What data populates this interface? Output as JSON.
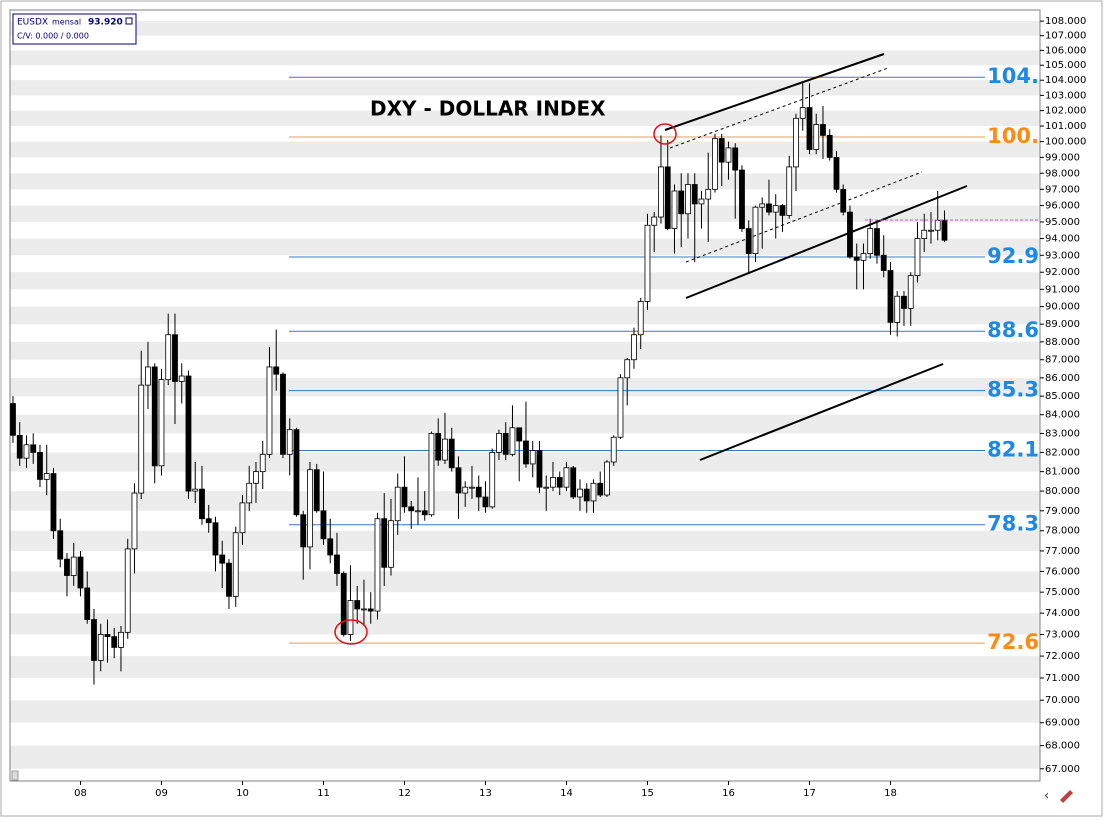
{
  "chart_data": {
    "type": "candlestick",
    "title": "DXY - DOLLAR INDEX",
    "header": {
      "symbol": "EUSDX",
      "period": "mensal",
      "price": "93.920",
      "cv": "C/V: 0.000 / 0.000"
    },
    "log_scale": true,
    "stripes": true,
    "colors": {
      "up_fill": "#ffffff",
      "down_fill": "#000000",
      "outline": "#000000",
      "stripe": "#ececec"
    },
    "categories": [
      null,
      null,
      null,
      null,
      null,
      null,
      null,
      null,
      null,
      null,
      "08",
      null,
      null,
      null,
      null,
      null,
      null,
      null,
      null,
      null,
      null,
      null,
      "09",
      null,
      null,
      null,
      null,
      null,
      null,
      null,
      null,
      null,
      null,
      null,
      "10",
      null,
      null,
      null,
      null,
      null,
      null,
      null,
      null,
      null,
      null,
      null,
      "11",
      null,
      null,
      null,
      null,
      null,
      null,
      null,
      null,
      null,
      null,
      null,
      "12",
      null,
      null,
      null,
      null,
      null,
      null,
      null,
      null,
      null,
      null,
      null,
      "13",
      null,
      null,
      null,
      null,
      null,
      null,
      null,
      null,
      null,
      null,
      null,
      "14",
      null,
      null,
      null,
      null,
      null,
      null,
      null,
      null,
      null,
      null,
      null,
      "15",
      null,
      null,
      null,
      null,
      null,
      null,
      null,
      null,
      null,
      null,
      null,
      "16",
      null,
      null,
      null,
      null,
      null,
      null,
      null,
      null,
      null,
      null,
      null,
      "17",
      null,
      null,
      null,
      null,
      null,
      null,
      null,
      null,
      null,
      null,
      null,
      "18",
      null,
      null,
      null,
      null,
      null,
      null,
      null,
      null
    ],
    "open": [
      84.6,
      82.9,
      81.7,
      82.4,
      82.0,
      80.6,
      80.9,
      78.0,
      76.6,
      75.8,
      76.7,
      75.2,
      73.7,
      71.8,
      73.0,
      72.9,
      72.4,
      73.1,
      77.1,
      79.9,
      85.6,
      86.6,
      81.3,
      85.9,
      88.4,
      85.8,
      86.1,
      80.0,
      80.1,
      78.6,
      78.4,
      76.8,
      76.4,
      74.8,
      77.9,
      79.4,
      80.4,
      81.0,
      81.9,
      86.6,
      86.2,
      81.9,
      83.2,
      78.8,
      77.2,
      81.1,
      79.0,
      77.6,
      76.8,
      75.9,
      73.0,
      74.6,
      74.2,
      74.2,
      74.1,
      78.6,
      76.2,
      78.5,
      80.2,
      79.2,
      79.0,
      79.0,
      78.8,
      83.0,
      81.6,
      82.7,
      81.2,
      79.9,
      80.2,
      80.2,
      79.7,
      79.2,
      82.0,
      83.0,
      81.9,
      83.3,
      82.6,
      81.4,
      82.1,
      80.2,
      80.2,
      80.7,
      80.2,
      81.2,
      79.7,
      80.1,
      79.5,
      80.4,
      79.8,
      81.5,
      82.8,
      86.0,
      87.0,
      88.4,
      90.3,
      94.8,
      95.3,
      98.4,
      94.6,
      96.9,
      95.5,
      97.3,
      96.1,
      96.4,
      97.0,
      100.2,
      98.7,
      99.6,
      98.2,
      94.6,
      93.1,
      95.9,
      96.1,
      95.6,
      96.0,
      95.4,
      98.4,
      101.5,
      102.2,
      99.5,
      101.1,
      100.4,
      99.0,
      97.0,
      95.6,
      92.9,
      92.7,
      93.1,
      94.6,
      93.0,
      92.1,
      89.1,
      90.6,
      89.9,
      91.8,
      94.0,
      94.5,
      94.5,
      95.1
    ],
    "high": [
      85.0,
      83.6,
      82.9,
      83.0,
      82.4,
      82.4,
      81.2,
      78.6,
      76.9,
      77.4,
      77.0,
      76.0,
      74.2,
      73.5,
      73.7,
      73.3,
      73.4,
      77.6,
      80.4,
      87.5,
      88.0,
      86.8,
      86.5,
      89.6,
      89.6,
      86.8,
      86.4,
      81.5,
      81.3,
      79.3,
      78.7,
      77.5,
      76.6,
      78.2,
      79.8,
      81.3,
      81.5,
      82.6,
      87.7,
      88.7,
      86.3,
      83.8,
      83.3,
      79.0,
      81.5,
      81.4,
      81.0,
      78.6,
      77.9,
      76.0,
      76.3,
      75.3,
      75.6,
      75.0,
      78.9,
      79.9,
      79.6,
      80.9,
      81.8,
      79.5,
      80.7,
      80.0,
      83.1,
      83.8,
      84.1,
      83.3,
      81.8,
      80.5,
      81.3,
      80.8,
      80.5,
      82.2,
      83.2,
      83.6,
      84.5,
      83.3,
      84.7,
      82.6,
      82.6,
      80.8,
      81.5,
      81.0,
      81.5,
      81.3,
      80.6,
      80.4,
      80.6,
      81.0,
      81.6,
      82.9,
      86.2,
      87.1,
      88.8,
      90.5,
      95.5,
      95.6,
      100.4,
      100.1,
      97.3,
      98.0,
      98.0,
      98.0,
      96.9,
      99.3,
      100.5,
      100.5,
      100.0,
      99.9,
      98.5,
      95.1,
      96.0,
      96.5,
      97.6,
      96.7,
      96.1,
      99.1,
      101.8,
      103.8,
      103.8,
      101.8,
      102.3,
      100.8,
      99.4,
      97.3,
      96.0,
      93.7,
      93.7,
      95.2,
      95.1,
      94.2,
      92.6,
      90.9,
      90.9,
      92.0,
      95.0,
      95.5,
      95.6,
      96.9,
      95.7
    ],
    "low": [
      82.5,
      81.3,
      81.2,
      81.4,
      80.2,
      79.8,
      77.6,
      76.2,
      74.8,
      75.3,
      74.8,
      73.5,
      70.7,
      71.3,
      71.7,
      71.9,
      71.3,
      72.8,
      75.9,
      79.6,
      84.3,
      80.4,
      80.8,
      85.6,
      83.5,
      84.6,
      79.6,
      79.4,
      78.3,
      77.9,
      76.0,
      75.2,
      74.2,
      74.3,
      77.3,
      79.0,
      79.4,
      80.1,
      81.7,
      85.3,
      81.7,
      80.8,
      78.7,
      75.6,
      76.1,
      78.9,
      77.3,
      76.4,
      75.3,
      72.9,
      72.7,
      73.5,
      73.4,
      73.5,
      73.7,
      75.3,
      75.8,
      77.8,
      78.9,
      78.1,
      78.3,
      78.5,
      78.7,
      81.3,
      81.4,
      81.0,
      78.6,
      79.2,
      79.6,
      79.0,
      78.9,
      79.1,
      81.6,
      81.6,
      81.8,
      80.5,
      81.2,
      80.7,
      79.9,
      79.0,
      80.0,
      79.8,
      80.0,
      79.6,
      79.0,
      78.9,
      78.9,
      79.7,
      79.7,
      81.3,
      82.7,
      84.5,
      86.5,
      87.6,
      89.8,
      93.2,
      94.9,
      94.5,
      93.1,
      93.5,
      94.0,
      92.6,
      94.6,
      93.8,
      96.8,
      97.2,
      97.6,
      95.2,
      94.4,
      91.9,
      92.6,
      93.4,
      95.4,
      94.0,
      94.4,
      95.2,
      96.9,
      100.7,
      99.2,
      99.2,
      98.9,
      98.8,
      96.8,
      95.4,
      92.8,
      91.0,
      91.0,
      92.8,
      92.5,
      91.7,
      88.4,
      88.3,
      88.9,
      88.9,
      91.4,
      93.2,
      93.7,
      93.9,
      93.8
    ],
    "close": [
      82.9,
      81.7,
      82.4,
      82.0,
      80.6,
      80.9,
      78.0,
      76.6,
      75.8,
      76.7,
      75.2,
      73.7,
      71.8,
      73.0,
      72.9,
      72.4,
      73.1,
      77.1,
      79.9,
      85.6,
      86.6,
      81.3,
      85.9,
      88.4,
      85.8,
      86.1,
      80.0,
      80.1,
      78.6,
      78.4,
      76.8,
      76.4,
      74.8,
      77.9,
      79.4,
      80.4,
      81.0,
      81.9,
      86.6,
      86.2,
      81.9,
      83.2,
      78.8,
      77.2,
      81.1,
      79.0,
      77.6,
      76.8,
      75.9,
      73.0,
      74.6,
      74.2,
      74.2,
      74.1,
      78.6,
      76.2,
      78.5,
      80.2,
      79.2,
      79.0,
      79.0,
      78.8,
      83.0,
      81.6,
      82.7,
      81.2,
      79.9,
      80.2,
      80.2,
      79.7,
      79.2,
      82.0,
      83.0,
      81.9,
      83.3,
      82.6,
      81.4,
      82.1,
      80.2,
      80.2,
      80.7,
      80.2,
      81.2,
      79.7,
      80.1,
      79.5,
      80.4,
      79.8,
      81.5,
      82.8,
      86.0,
      87.0,
      88.4,
      90.3,
      94.8,
      95.3,
      98.4,
      94.6,
      96.9,
      95.5,
      97.3,
      96.1,
      96.4,
      97.0,
      100.2,
      98.7,
      99.6,
      98.2,
      94.6,
      93.1,
      95.9,
      96.1,
      95.6,
      96.0,
      95.4,
      98.4,
      101.5,
      102.2,
      99.5,
      101.1,
      100.4,
      99.0,
      97.0,
      95.6,
      92.9,
      92.7,
      93.1,
      94.6,
      93.0,
      92.1,
      89.1,
      90.6,
      89.9,
      91.8,
      94.0,
      94.5,
      94.5,
      95.1,
      93.9
    ],
    "ylim": [
      66.48,
      108.7
    ],
    "yticks": [
      {
        "value": 108,
        "label": "108.000"
      },
      {
        "value": 107,
        "label": "107.000"
      },
      {
        "value": 106,
        "label": "106.000"
      },
      {
        "value": 105,
        "label": "105.000"
      },
      {
        "value": 104,
        "label": "104.000"
      },
      {
        "value": 103,
        "label": "103.000"
      },
      {
        "value": 102,
        "label": "102.000"
      },
      {
        "value": 101,
        "label": "101.000"
      },
      {
        "value": 100,
        "label": "100.000"
      },
      {
        "value": 99,
        "label": "99.000"
      },
      {
        "value": 98,
        "label": "98.000"
      },
      {
        "value": 97,
        "label": "97.000"
      },
      {
        "value": 96,
        "label": "96.000"
      },
      {
        "value": 95,
        "label": "95.000"
      },
      {
        "value": 94,
        "label": "94.000"
      },
      {
        "value": 93,
        "label": "93.000"
      },
      {
        "value": 92,
        "label": "92.000"
      },
      {
        "value": 91,
        "label": "91.000"
      },
      {
        "value": 90,
        "label": "90.000"
      },
      {
        "value": 89,
        "label": "89.000"
      },
      {
        "value": 88,
        "label": "88.000"
      },
      {
        "value": 87,
        "label": "87.000"
      },
      {
        "value": 86,
        "label": "86.000"
      },
      {
        "value": 85,
        "label": "85.000"
      },
      {
        "value": 84,
        "label": "84.000"
      },
      {
        "value": 83,
        "label": "83.000"
      },
      {
        "value": 82,
        "label": "82.000"
      },
      {
        "value": 81,
        "label": "81.000"
      },
      {
        "value": 80,
        "label": "80.000"
      },
      {
        "value": 79,
        "label": "79.000"
      },
      {
        "value": 78,
        "label": "78.000"
      },
      {
        "value": 77,
        "label": "77.000"
      },
      {
        "value": 76,
        "label": "76.000"
      },
      {
        "value": 75,
        "label": "75.000"
      },
      {
        "value": 74,
        "label": "74.000"
      },
      {
        "value": 73,
        "label": "73.000"
      },
      {
        "value": 72,
        "label": "72.000"
      },
      {
        "value": 71,
        "label": "71.000"
      },
      {
        "value": 70,
        "label": "70.000"
      },
      {
        "value": 69,
        "label": "69.000"
      },
      {
        "value": 68,
        "label": "68.000"
      },
      {
        "value": 67,
        "label": "67.000"
      }
    ],
    "levels": [
      {
        "value": 104.2,
        "label": "104.",
        "color": "#1e88e8",
        "line_color": "#3a78c8"
      },
      {
        "value": 100.3,
        "label": "100.",
        "color": "#ff8a14",
        "line_color": "#e0a050"
      },
      {
        "value": 92.9,
        "label": "92.9",
        "color": "#1e88e8",
        "line_color": "#3a78c8"
      },
      {
        "value": 88.6,
        "label": "88.6",
        "color": "#1e88e8",
        "line_color": "#3a78c8"
      },
      {
        "value": 85.3,
        "label": "85.3",
        "color": "#1e88e8",
        "line_color": "#3a78c8"
      },
      {
        "value": 82.1,
        "label": "82.1",
        "color": "#1e88e8",
        "line_color": "#3a78c8"
      },
      {
        "value": 78.3,
        "label": "78.3",
        "color": "#1e88e8",
        "line_color": "#3a78c8"
      },
      {
        "value": 72.6,
        "label": "72.6",
        "color": "#ff8a14",
        "line_color": "#e0a050"
      }
    ]
  }
}
